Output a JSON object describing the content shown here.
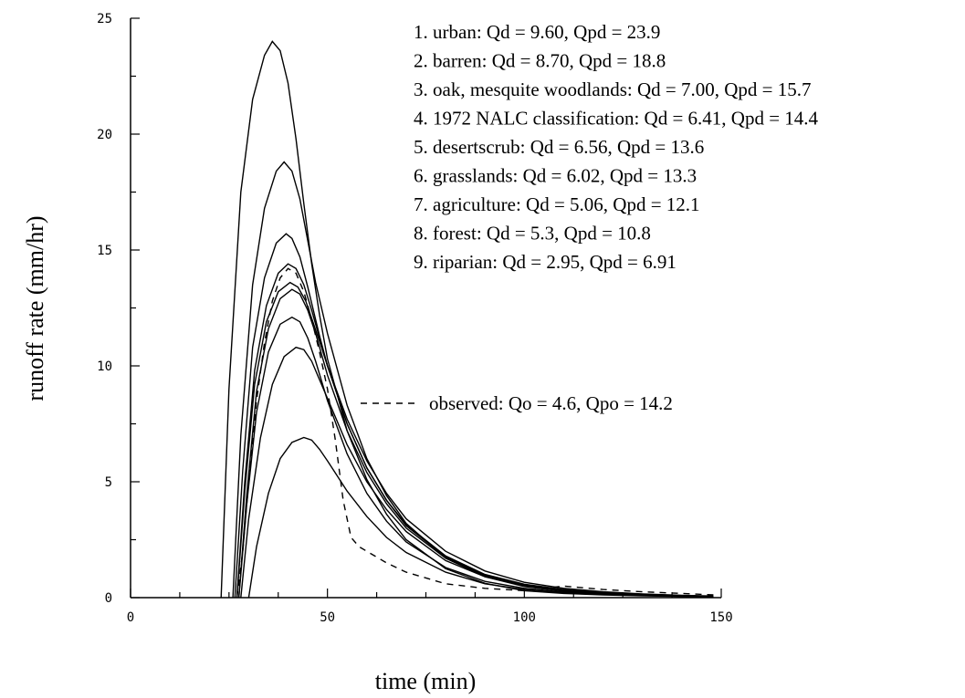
{
  "chart_data": {
    "type": "line",
    "title": "",
    "xlabel": "time (min)",
    "ylabel": "runoff rate (mm/hr)",
    "xlim": [
      0,
      150
    ],
    "ylim": [
      0,
      25
    ],
    "x_ticks": [
      0,
      50,
      100,
      150
    ],
    "y_ticks": [
      0,
      5,
      10,
      15,
      20,
      25
    ],
    "grid": false,
    "legend_position": "top-right",
    "series": [
      {
        "name": "1. urban: Qd = 9.60, Qpd = 23.9",
        "style": "solid",
        "x": [
          23,
          25,
          28,
          31,
          34,
          36,
          38,
          40,
          42,
          44,
          46,
          48,
          50,
          55,
          60,
          65,
          70,
          80,
          90,
          100,
          110,
          120,
          130,
          140,
          148
        ],
        "y": [
          0,
          9,
          17.5,
          21.5,
          23.4,
          24.0,
          23.6,
          22.2,
          19.8,
          17.0,
          14.4,
          12.2,
          10.3,
          7.2,
          5.1,
          3.6,
          2.5,
          1.25,
          0.62,
          0.3,
          0.18,
          0.12,
          0.08,
          0.05,
          0.03
        ]
      },
      {
        "name": "2. barren: Qd = 8.70, Qpd = 18.8",
        "style": "solid",
        "x": [
          26,
          28,
          31,
          34,
          37,
          39,
          41,
          43,
          45,
          47,
          50,
          55,
          60,
          65,
          70,
          80,
          90,
          100,
          110,
          120,
          130,
          140,
          148
        ],
        "y": [
          0,
          7,
          13.5,
          16.8,
          18.4,
          18.8,
          18.4,
          17.2,
          15.4,
          13.6,
          11.4,
          8.3,
          6.0,
          4.4,
          3.2,
          1.7,
          0.9,
          0.48,
          0.28,
          0.18,
          0.12,
          0.08,
          0.05
        ]
      },
      {
        "name": "3. oak, mesquite woodlands: Qd = 7.00, Qpd = 15.7",
        "style": "solid",
        "x": [
          26.5,
          28.5,
          31,
          34,
          37,
          39.5,
          41,
          43,
          45,
          48,
          50,
          55,
          60,
          65,
          70,
          80,
          90,
          100,
          110,
          120,
          130,
          140,
          148
        ],
        "y": [
          0,
          5.5,
          10.8,
          13.8,
          15.3,
          15.7,
          15.5,
          14.7,
          13.4,
          11.3,
          10.0,
          7.5,
          5.6,
          4.2,
          3.1,
          1.75,
          0.98,
          0.55,
          0.33,
          0.2,
          0.13,
          0.09,
          0.06
        ]
      },
      {
        "name": "4. 1972 NALC classification: Qd = 6.41, Qpd = 14.4",
        "style": "solid",
        "x": [
          27,
          29,
          31.5,
          34.5,
          37.5,
          40,
          42,
          44,
          46,
          48,
          50,
          55,
          60,
          65,
          70,
          80,
          90,
          100,
          110,
          120,
          130,
          140,
          148
        ],
        "y": [
          0,
          5,
          9.8,
          12.6,
          14.0,
          14.4,
          14.2,
          13.5,
          12.4,
          11.2,
          10.0,
          7.5,
          5.6,
          4.2,
          3.15,
          1.8,
          1.0,
          0.58,
          0.35,
          0.22,
          0.14,
          0.09,
          0.06
        ]
      },
      {
        "name": "5. desertscrub: Qd = 6.56, Qpd = 13.6",
        "style": "solid",
        "x": [
          27,
          29,
          31.5,
          34.5,
          37.5,
          40.5,
          42.5,
          44.5,
          46.5,
          48.5,
          50,
          55,
          60,
          65,
          70,
          80,
          90,
          100,
          110,
          120,
          130,
          140,
          148
        ],
        "y": [
          0,
          4.6,
          9.2,
          11.9,
          13.2,
          13.6,
          13.4,
          12.8,
          11.8,
          10.8,
          10.0,
          7.7,
          5.9,
          4.5,
          3.4,
          2.0,
          1.15,
          0.66,
          0.4,
          0.25,
          0.16,
          0.1,
          0.07
        ]
      },
      {
        "name": "6. grasslands: Qd = 6.02, Qpd = 13.3",
        "style": "solid",
        "x": [
          27.5,
          29.5,
          32,
          35,
          38,
          41,
          43,
          45,
          47,
          50,
          55,
          60,
          65,
          70,
          80,
          90,
          100,
          110,
          120,
          130,
          140,
          148
        ],
        "y": [
          0,
          4.4,
          8.9,
          11.6,
          12.9,
          13.3,
          13.1,
          12.4,
          11.4,
          9.6,
          7.2,
          5.4,
          4.05,
          3.0,
          1.7,
          0.95,
          0.55,
          0.33,
          0.2,
          0.13,
          0.08,
          0.05
        ]
      },
      {
        "name": "7. agriculture: Qd = 5.06, Qpd = 12.1",
        "style": "solid",
        "x": [
          27.5,
          29.5,
          32,
          35,
          38,
          41,
          43,
          45,
          47,
          50,
          55,
          60,
          65,
          70,
          80,
          90,
          100,
          110,
          120,
          130,
          140,
          148
        ],
        "y": [
          0,
          4.0,
          8.0,
          10.6,
          11.8,
          12.1,
          11.9,
          11.2,
          10.2,
          8.5,
          6.2,
          4.5,
          3.3,
          2.4,
          1.3,
          0.7,
          0.4,
          0.24,
          0.15,
          0.1,
          0.06,
          0.04
        ]
      },
      {
        "name": "8. forest: Qd = 5.3, Qpd = 10.8",
        "style": "solid",
        "x": [
          28,
          30,
          33,
          36,
          39,
          42,
          44,
          46,
          48,
          50,
          55,
          60,
          65,
          70,
          80,
          90,
          100,
          110,
          120,
          130,
          140,
          148
        ],
        "y": [
          0,
          3.4,
          6.9,
          9.2,
          10.4,
          10.8,
          10.7,
          10.2,
          9.4,
          8.6,
          6.6,
          5.0,
          3.8,
          2.85,
          1.6,
          0.9,
          0.52,
          0.32,
          0.2,
          0.13,
          0.08,
          0.05
        ]
      },
      {
        "name": "9. riparian: Qd = 2.95, Qpd = 6.91",
        "style": "solid",
        "x": [
          30,
          32,
          35,
          38,
          41,
          44,
          46,
          48,
          50,
          55,
          60,
          65,
          70,
          80,
          90,
          100,
          110,
          120,
          130,
          140,
          148
        ],
        "y": [
          0,
          2.2,
          4.5,
          6.0,
          6.7,
          6.91,
          6.8,
          6.4,
          5.9,
          4.6,
          3.5,
          2.6,
          1.95,
          1.1,
          0.6,
          0.35,
          0.22,
          0.14,
          0.09,
          0.06,
          0.04
        ]
      },
      {
        "name": "observed: Qo = 4.6, Qpo = 14.2",
        "style": "dashed",
        "x": [
          27,
          28.5,
          30,
          32,
          34,
          36,
          38,
          40,
          42,
          44,
          46,
          48,
          50,
          52,
          54,
          56,
          58,
          60,
          65,
          70,
          80,
          90,
          100,
          110,
          120,
          130,
          140,
          148
        ],
        "y": [
          0,
          2,
          5,
          8.5,
          11,
          12.8,
          13.8,
          14.2,
          14.0,
          13.2,
          12.0,
          10.6,
          9.0,
          6.8,
          4.2,
          2.6,
          2.2,
          2.0,
          1.5,
          1.1,
          0.6,
          0.4,
          0.3,
          0.5,
          0.35,
          0.25,
          0.18,
          0.12
        ]
      }
    ]
  }
}
